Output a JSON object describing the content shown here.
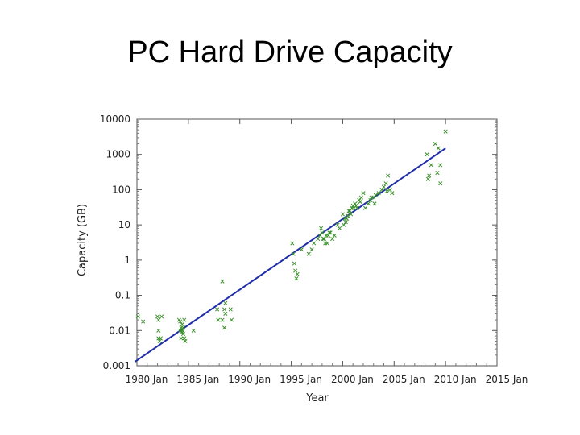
{
  "slide": {
    "title": "PC Hard Drive Capacity"
  },
  "chart_data": {
    "type": "scatter",
    "title": "",
    "xlabel": "Year",
    "ylabel": "Capacity (GB)",
    "x_scale": "time",
    "y_scale": "log",
    "xlim": [
      "1980-01",
      "2015-01"
    ],
    "ylim": [
      0.001,
      10000
    ],
    "x_tick_labels": [
      "1980 Jan",
      "1985 Jan",
      "1990 Jan",
      "1995 Jan",
      "2000 Jan",
      "2005 Jan",
      "2010 Jan",
      "2015 Jan"
    ],
    "y_tick_labels": [
      "0.001",
      "0.01",
      "0.1",
      "1",
      "10",
      "100",
      "1000",
      "10000"
    ],
    "grid": false,
    "colors": {
      "points": "#3a8f2a",
      "trend": "#1f2ea8"
    },
    "series": [
      {
        "name": "",
        "marker": "x",
        "x": [
          1980.1,
          1980.6,
          1982.0,
          1982.1,
          1982.1,
          1982.1,
          1982.2,
          1982.3,
          1982.4,
          1984.1,
          1984.2,
          1984.3,
          1984.4,
          1984.5,
          1984.6,
          1984.7,
          1984.2,
          1984.4,
          1984.6,
          1984.3,
          1984.5,
          1984.4,
          1985.5,
          1987.8,
          1987.9,
          1988.3,
          1988.5,
          1988.6,
          1988.6,
          1989.1,
          1989.2,
          1988.5,
          1988.3,
          1995.1,
          1995.2,
          1995.3,
          1995.4,
          1995.5,
          1995.6,
          1996.0,
          1996.7,
          1997.0,
          1997.2,
          1997.6,
          1997.8,
          1998.0,
          1998.2,
          1998.4,
          1998.5,
          1998.6,
          1998.8,
          1999.0,
          1999.2,
          1997.9,
          1998.1,
          1998.3,
          1998.7,
          1999.5,
          1999.7,
          2000.0,
          2000.2,
          2000.3,
          2000.5,
          2000.7,
          2000.9,
          2001.0,
          2001.2,
          2001.4,
          2001.6,
          2001.8,
          2002.0,
          2000.1,
          2000.4,
          2000.8,
          2001.3,
          2001.7,
          2002.2,
          2002.5,
          2002.7,
          2003.0,
          2003.2,
          2003.5,
          2003.8,
          2004.0,
          2004.2,
          2004.4,
          2004.6,
          2004.8,
          2003.1,
          2004.3,
          2002.8,
          2000.6,
          2001.1,
          2008.2,
          2008.6,
          2008.4,
          2009.0,
          2009.3,
          2009.5,
          2009.5,
          2008.3,
          2009.2,
          2010.0
        ],
        "y": [
          0.025,
          0.018,
          0.025,
          0.02,
          0.01,
          0.006,
          0.005,
          0.006,
          0.025,
          0.02,
          0.018,
          0.012,
          0.01,
          0.008,
          0.006,
          0.005,
          0.01,
          0.015,
          0.02,
          0.006,
          0.012,
          0.009,
          0.01,
          0.04,
          0.02,
          0.02,
          0.04,
          0.03,
          0.06,
          0.04,
          0.02,
          0.012,
          0.25,
          3,
          1.5,
          0.8,
          0.5,
          0.3,
          0.4,
          2,
          1.5,
          2,
          3,
          4,
          5,
          6,
          4,
          5,
          3,
          5,
          6,
          4,
          5,
          8,
          4,
          3,
          6,
          10,
          8,
          20,
          15,
          12,
          18,
          25,
          30,
          35,
          40,
          30,
          50,
          60,
          80,
          10,
          15,
          20,
          35,
          45,
          30,
          40,
          50,
          60,
          70,
          80,
          100,
          120,
          150,
          250,
          100,
          80,
          40,
          90,
          60,
          25,
          30,
          1000,
          500,
          250,
          2000,
          1500,
          500,
          150,
          200,
          300,
          4500
        ]
      },
      {
        "name": "",
        "type": "line",
        "x": [
          1979.8,
          2010.0
        ],
        "y": [
          0.0013,
          1500
        ]
      }
    ]
  }
}
